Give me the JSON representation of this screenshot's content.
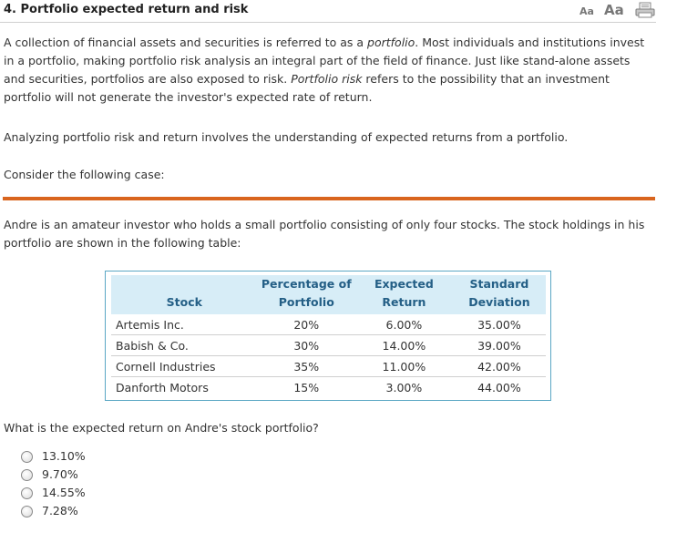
{
  "header": {
    "question_title": "4. Portfolio expected return and risk",
    "font_small_label": "Aa",
    "font_large_label": "Aa",
    "print_icon": "printer-icon"
  },
  "intro": {
    "p1_a": "A collection of financial assets and securities is referred to as a ",
    "p1_em1": "portfolio",
    "p1_b": ". Most individuals and institutions invest in a portfolio, making portfolio risk analysis an integral part of the field of finance. Just like stand-alone assets and securities, portfolios are also exposed to risk. ",
    "p1_em2": "Portfolio risk",
    "p1_c": " refers to the possibility that an investment portfolio will not generate the investor's expected rate of return.",
    "p2": "Analyzing portfolio risk and return involves the understanding of expected returns from a portfolio.",
    "p3": "Consider the following case:"
  },
  "case": {
    "text": "Andre is an amateur investor who holds a small portfolio consisting of only four stocks. The stock holdings in his portfolio are shown in the following table:"
  },
  "table": {
    "headers": {
      "stock": "Stock",
      "pct_line1": "Percentage of",
      "pct_line2": "Portfolio",
      "ret_line1": "Expected",
      "ret_line2": "Return",
      "std_line1": "Standard",
      "std_line2": "Deviation"
    },
    "rows": [
      {
        "stock": "Artemis Inc.",
        "pct": "20%",
        "ret": "6.00%",
        "std": "35.00%"
      },
      {
        "stock": "Babish & Co.",
        "pct": "30%",
        "ret": "14.00%",
        "std": "39.00%"
      },
      {
        "stock": "Cornell Industries",
        "pct": "35%",
        "ret": "11.00%",
        "std": "42.00%"
      },
      {
        "stock": "Danforth Motors",
        "pct": "15%",
        "ret": "3.00%",
        "std": "44.00%"
      }
    ]
  },
  "question": {
    "text": "What is the expected return on Andre's stock portfolio?",
    "options": [
      "13.10%",
      "9.70%",
      "14.55%",
      "7.28%"
    ]
  }
}
